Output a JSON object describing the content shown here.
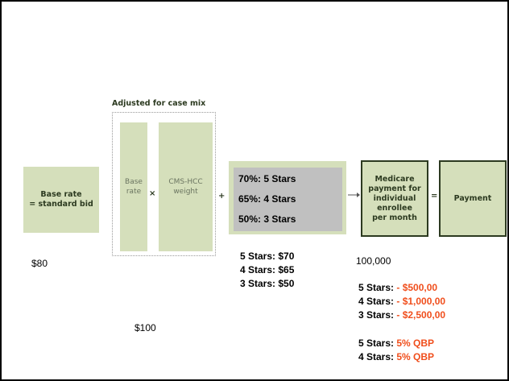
{
  "caption": "Adjusted for case mix",
  "base_box": [
    "Base rate",
    "= standard bid"
  ],
  "base_column": [
    "Base",
    "rate"
  ],
  "weight_column": [
    "CMS-HCC",
    "weight"
  ],
  "operators": {
    "times": "×",
    "plus": "+",
    "equals": "="
  },
  "star_rates": [
    "70%: 5 Stars",
    "65%: 4 Stars",
    "50%: 3 Stars"
  ],
  "medicare_box": [
    "Medicare",
    "payment for",
    "individual",
    "enrollee",
    "per month"
  ],
  "payment_box": "Payment",
  "amounts": {
    "base": "$80",
    "adjusted": "$100",
    "enrollees": "100,000"
  },
  "star_payments": [
    "5 Stars: $70",
    "4 Stars: $65",
    "3 Stars: $50"
  ],
  "penalties": [
    {
      "label": "5 Stars:",
      "amount": "- $500,00"
    },
    {
      "label": "4 Stars:",
      "amount": "- $1,000,00"
    },
    {
      "label": "3 Stars:",
      "amount": "- $2,500,00"
    }
  ],
  "qbp": [
    {
      "label": "5 Stars:",
      "amount": "5% QBP"
    },
    {
      "label": "4 Stars:",
      "amount": "5% QBP"
    }
  ]
}
